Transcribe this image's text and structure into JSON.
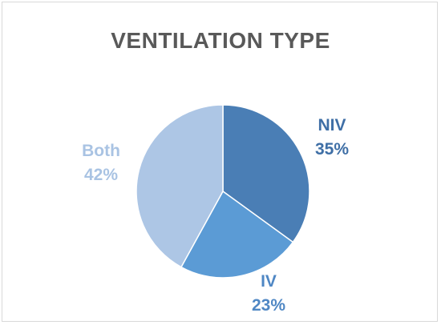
{
  "chart_data": {
    "type": "pie",
    "title": "VENTILATION TYPE",
    "slices": [
      {
        "label": "NIV",
        "value": 35,
        "value_label": "35%",
        "color": "#4a7eb5",
        "label_color": "#3f6fa6"
      },
      {
        "label": "IV",
        "value": 23,
        "value_label": "23%",
        "color": "#5b9bd5",
        "label_color": "#4f87c4"
      },
      {
        "label": "Both",
        "value": 42,
        "value_label": "42%",
        "color": "#adc6e5",
        "label_color": "#a9c3e3"
      }
    ],
    "start_angle_deg": 0,
    "direction": "clockwise",
    "legend": "none"
  }
}
